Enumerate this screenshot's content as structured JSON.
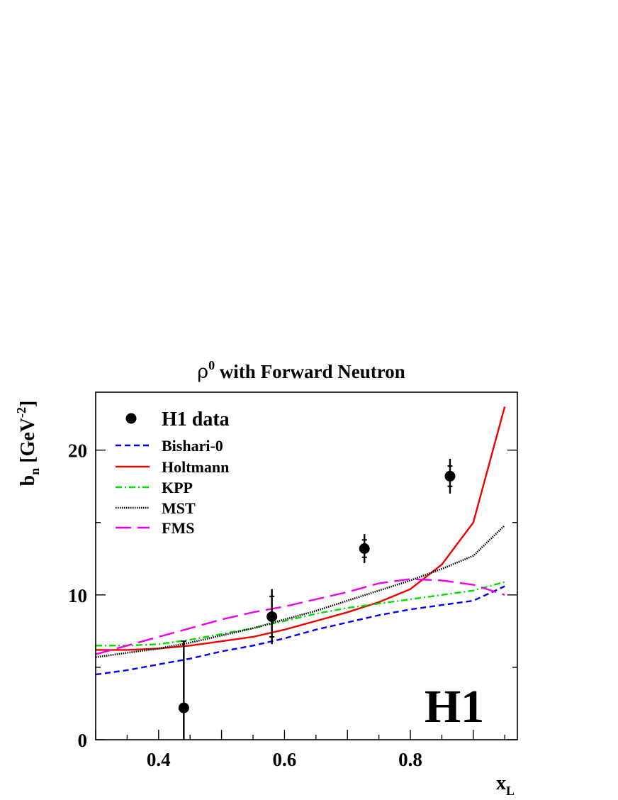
{
  "colors": {
    "data": "#000000",
    "bishari": "#0000ee",
    "holtmann": "#ee0000",
    "kpp": "#00dd00",
    "mst": "#000000",
    "fms": "#ee00ee"
  },
  "chart_data": {
    "type": "line",
    "title_main": "ρ",
    "title_sup": "0",
    "title_rest": " with Forward Neutron",
    "ylabel_main": "b",
    "ylabel_sub": "n",
    "ylabel_unit": " [GeV",
    "ylabel_sup": "-2",
    "ylabel_close": "]",
    "xlabel_main": "x",
    "xlabel_sub": "L",
    "watermark": "H1",
    "xlim": [
      0.3,
      0.97
    ],
    "ylim": [
      0,
      24
    ],
    "xticks": [
      0.4,
      0.6,
      0.8
    ],
    "xtick_labels": [
      "0.4",
      "0.6",
      "0.8"
    ],
    "yticks": [
      0,
      10,
      20
    ],
    "ytick_labels": [
      "0",
      "10",
      "20"
    ],
    "legend_position": "top-left",
    "points": {
      "name": "H1 data",
      "x": [
        0.44,
        0.58,
        0.727,
        0.863
      ],
      "y": [
        2.2,
        8.5,
        13.2,
        18.2
      ],
      "stat_err": [
        4.6,
        1.4,
        0.6,
        0.7
      ],
      "tot_err": [
        4.6,
        1.9,
        1.0,
        1.2
      ]
    },
    "series": [
      {
        "name": "Bishari-0",
        "color_key": "bishari",
        "style": "dashed",
        "x": [
          0.3,
          0.35,
          0.4,
          0.45,
          0.5,
          0.55,
          0.6,
          0.65,
          0.7,
          0.75,
          0.8,
          0.85,
          0.9,
          0.95
        ],
        "y": [
          4.5,
          4.8,
          5.2,
          5.6,
          6.1,
          6.5,
          7.0,
          7.6,
          8.1,
          8.6,
          9.0,
          9.3,
          9.6,
          10.6
        ]
      },
      {
        "name": "Holtmann",
        "color_key": "holtmann",
        "style": "solid",
        "x": [
          0.3,
          0.35,
          0.4,
          0.45,
          0.5,
          0.55,
          0.6,
          0.65,
          0.7,
          0.75,
          0.8,
          0.85,
          0.9,
          0.95
        ],
        "y": [
          6.2,
          6.2,
          6.3,
          6.5,
          6.8,
          7.1,
          7.6,
          8.2,
          8.8,
          9.5,
          10.4,
          12.1,
          15.0,
          23.0
        ]
      },
      {
        "name": "KPP",
        "color_key": "kpp",
        "style": "dashdot",
        "x": [
          0.3,
          0.35,
          0.4,
          0.45,
          0.5,
          0.55,
          0.6,
          0.65,
          0.7,
          0.75,
          0.8,
          0.85,
          0.9,
          0.95
        ],
        "y": [
          6.5,
          6.5,
          6.6,
          6.9,
          7.3,
          7.7,
          8.2,
          8.7,
          9.1,
          9.4,
          9.7,
          10.0,
          10.3,
          10.9
        ]
      },
      {
        "name": "MST",
        "color_key": "mst",
        "style": "dotted",
        "x": [
          0.3,
          0.35,
          0.4,
          0.45,
          0.5,
          0.55,
          0.6,
          0.65,
          0.7,
          0.75,
          0.8,
          0.85,
          0.9,
          0.95
        ],
        "y": [
          5.7,
          6.0,
          6.3,
          6.7,
          7.2,
          7.7,
          8.3,
          8.9,
          9.6,
          10.3,
          11.0,
          11.8,
          12.7,
          14.8
        ]
      },
      {
        "name": "FMS",
        "color_key": "fms",
        "style": "longdash",
        "x": [
          0.3,
          0.35,
          0.4,
          0.45,
          0.5,
          0.55,
          0.6,
          0.65,
          0.7,
          0.75,
          0.8,
          0.85,
          0.9,
          0.95
        ],
        "y": [
          5.9,
          6.5,
          7.1,
          7.7,
          8.3,
          8.8,
          9.2,
          9.7,
          10.2,
          10.8,
          11.1,
          11.0,
          10.7,
          10.0
        ]
      }
    ]
  }
}
